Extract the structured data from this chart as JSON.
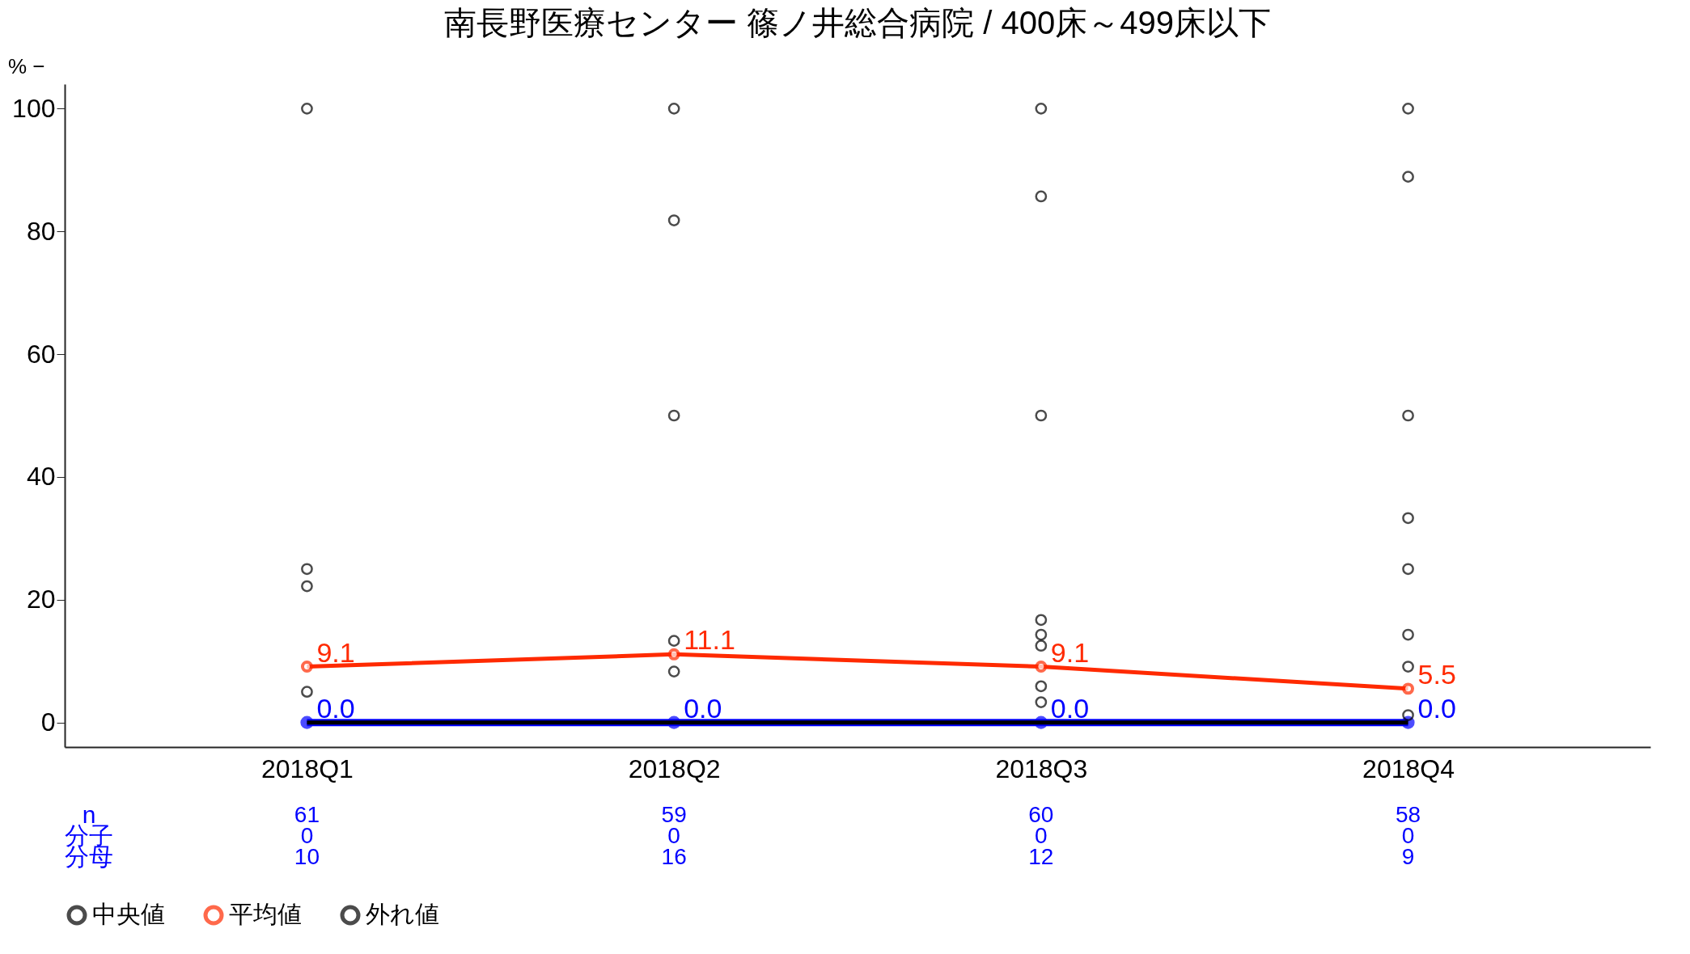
{
  "chart_data": {
    "type": "line",
    "title": "南長野医療センター 篠ノ井総合病院 / 400床～499床以下",
    "ylabel": "% −",
    "categories": [
      "2018Q1",
      "2018Q2",
      "2018Q3",
      "2018Q4"
    ],
    "series": [
      {
        "color": "#0000ff",
        "marker": "circle",
        "values": [
          0,
          0,
          0,
          0
        ],
        "value_labels": [
          "0.0",
          "0.0",
          "0.0",
          "0.0"
        ]
      },
      {
        "name": "中央値",
        "color": "#000000",
        "values": [
          0,
          0,
          0,
          0
        ]
      },
      {
        "name": "平均値",
        "color": "#ff2a00",
        "marker": "circle",
        "values": [
          9.1,
          11.1,
          9.1,
          5.5
        ],
        "value_labels": [
          "9.1",
          "11.1",
          "9.1",
          "5.5"
        ]
      },
      {
        "name": "外れ値",
        "type": "scatter",
        "color": "#000000",
        "marker": "circle",
        "x": [
          "2018Q1",
          "2018Q1",
          "2018Q1",
          "2018Q1",
          "2018Q2",
          "2018Q2",
          "2018Q2",
          "2018Q2",
          "2018Q2",
          "2018Q3",
          "2018Q3",
          "2018Q3",
          "2018Q3",
          "2018Q3",
          "2018Q3",
          "2018Q3",
          "2018Q3",
          "2018Q4",
          "2018Q4",
          "2018Q4",
          "2018Q4",
          "2018Q4",
          "2018Q4",
          "2018Q4",
          "2018Q4"
        ],
        "values": [
          100,
          25,
          22.2,
          5,
          100,
          81.8,
          50,
          13.3,
          8.3,
          100,
          85.7,
          50,
          16.7,
          14.3,
          12.5,
          5.9,
          3.3,
          100,
          88.9,
          50,
          33.3,
          25,
          14.3,
          9.1,
          1.2
        ]
      }
    ],
    "ylim": [
      -4,
      104
    ],
    "yticks": [
      0,
      20,
      40,
      60,
      80,
      100
    ],
    "grid": false,
    "legend": "bottom",
    "annotations": [
      "n",
      "分子",
      "分母",
      "61",
      "0",
      "10",
      "59",
      "0",
      "16",
      "60",
      "0",
      "12",
      "58",
      "0",
      "9"
    ]
  }
}
